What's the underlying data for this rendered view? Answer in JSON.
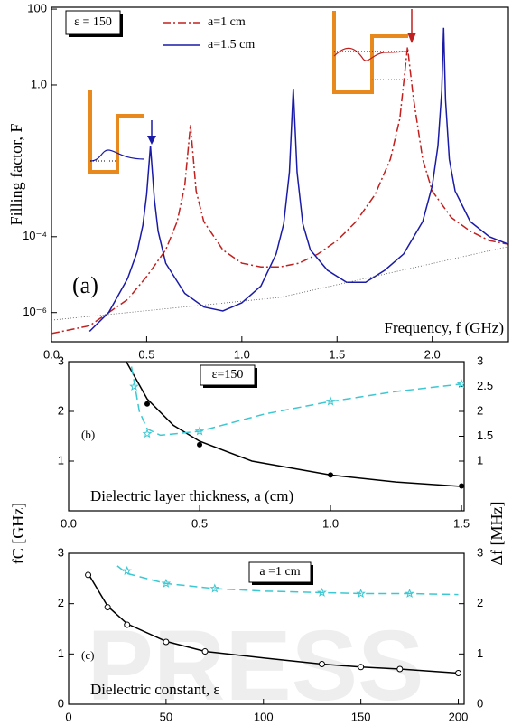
{
  "watermark": "PRESS",
  "chart_data": [
    {
      "type": "line",
      "ylog": true,
      "xlabel": "Frequency, f (GHz)",
      "ylabel": "Filling factor, F",
      "panel_label": "(a)",
      "annotation": "ε = 150",
      "xlim": [
        0,
        2.4
      ],
      "ylim": [
        1.7e-07,
        112
      ],
      "xticks": [
        {
          "value": 0,
          "label": "0.0"
        },
        {
          "value": 0.5,
          "label": "0.5"
        },
        {
          "value": 1,
          "label": "1.0"
        },
        {
          "value": 1.5,
          "label": "1.5"
        },
        {
          "value": 2,
          "label": "2.0"
        }
      ],
      "yticks": [
        {
          "value": 1e-06,
          "label": "10⁻⁶"
        },
        {
          "value": 0.0001,
          "label": "10⁻⁴"
        },
        {
          "value": 1,
          "label": "1.0"
        },
        100
      ],
      "series": [
        {
          "name": "a=1 cm",
          "color": "#c0201e",
          "style": "dashdot",
          "x": [
            0,
            0.2,
            0.3,
            0.4,
            0.5,
            0.6,
            0.66,
            0.7,
            0.73,
            0.76,
            0.8,
            0.9,
            1.0,
            1.1,
            1.2,
            1.3,
            1.4,
            1.5,
            1.6,
            1.7,
            1.78,
            1.83,
            1.87,
            1.9,
            1.95,
            2.0,
            2.1,
            2.2,
            2.3,
            2.4
          ],
          "values": [
            2.8e-07,
            4.5e-07,
            1e-06,
            2.2e-06,
            8.9e-06,
            4.5e-05,
            0.00025,
            0.0022,
            0.09,
            0.0016,
            0.00025,
            4.5e-05,
            2e-05,
            1.6e-05,
            1.6e-05,
            2e-05,
            3.5e-05,
            7.9e-05,
            0.00025,
            0.0013,
            0.011,
            0.13,
            10,
            0.5,
            0.011,
            0.0016,
            0.00032,
            0.00014,
            7.9e-05,
            6.3e-05
          ]
        },
        {
          "name": "a=1.5 cm",
          "color": "#1a1aa8",
          "style": "solid",
          "x": [
            0.2,
            0.3,
            0.4,
            0.45,
            0.48,
            0.5,
            0.52,
            0.54,
            0.56,
            0.6,
            0.7,
            0.8,
            0.9,
            1.0,
            1.1,
            1.18,
            1.22,
            1.25,
            1.27,
            1.29,
            1.32,
            1.36,
            1.45,
            1.55,
            1.65,
            1.75,
            1.85,
            1.95,
            2.0,
            2.03,
            2.05,
            2.06,
            2.07,
            2.09,
            2.12,
            2.2,
            2.3,
            2.4
          ],
          "values": [
            3.2e-07,
            1e-06,
            7.9e-06,
            4e-05,
            0.0002,
            0.0013,
            0.025,
            0.001,
            0.00014,
            2e-05,
            3.2e-06,
            1.4e-06,
            1.1e-06,
            1.8e-06,
            5e-06,
            3.5e-05,
            0.00022,
            0.005,
            0.8,
            0.005,
            0.00022,
            4.5e-05,
            1.3e-05,
            6.3e-06,
            6.3e-06,
            1.3e-05,
            3.5e-05,
            0.00025,
            0.0022,
            0.025,
            0.7,
            32,
            0.4,
            0.011,
            0.0016,
            0.00025,
            0.0001,
            6.3e-05
          ]
        },
        {
          "color": "#555555",
          "style": "dotted",
          "x": [
            0,
            1.2,
            2.4
          ],
          "values": [
            6.3e-07,
            2.5e-06,
            5.5e-05
          ]
        }
      ]
    },
    {
      "type": "line",
      "xlabel": "Dielectric layer thickness, a (cm)",
      "ylabel": "fC [GHz]",
      "y2label": "Δf [MHz]",
      "panel_label": "(b)",
      "annotation": "ε=150",
      "xlim": [
        0,
        1.51
      ],
      "ylim": [
        0,
        3
      ],
      "y2lim": [
        0,
        3
      ],
      "xticks": [
        {
          "value": 0,
          "label": "0.0"
        },
        {
          "value": 0.5,
          "label": "0.5"
        },
        {
          "value": 1,
          "label": "1.0"
        },
        {
          "value": 1.5,
          "label": "1.5"
        }
      ],
      "yticks": [
        1,
        2,
        3
      ],
      "y2ticks": [
        1,
        1.5,
        2,
        2.5,
        3
      ],
      "series": [
        {
          "color": "#000000",
          "style": "solid",
          "x": [
            0.22,
            0.3,
            0.4,
            0.5,
            0.7,
            1.0,
            1.25,
            1.5
          ],
          "values": [
            3.0,
            2.25,
            1.72,
            1.4,
            1.0,
            0.72,
            0.58,
            0.49
          ]
        },
        {
          "color": "#000000",
          "style": "none",
          "marker": "dot",
          "x": [
            0.3,
            0.5,
            1.0,
            1.5
          ],
          "values": [
            2.15,
            1.33,
            0.72,
            0.5
          ]
        },
        {
          "color": "#3cc8d2",
          "style": "dashed",
          "axis": "y2",
          "x": [
            0.24,
            0.27,
            0.3,
            0.35,
            0.5,
            0.75,
            1.0,
            1.25,
            1.5
          ],
          "values": [
            2.9,
            2.0,
            1.65,
            1.52,
            1.6,
            1.95,
            2.2,
            2.4,
            2.55
          ]
        },
        {
          "color": "#3cc8d2",
          "style": "none",
          "marker": "star",
          "axis": "y2",
          "x": [
            0.25,
            0.3,
            0.5,
            1.0,
            1.5
          ],
          "values": [
            2.5,
            1.55,
            1.6,
            2.2,
            2.55
          ]
        }
      ]
    },
    {
      "type": "line",
      "xlabel": "Dielectric constant, ε",
      "panel_label": "(c)",
      "annotation": "a =1 cm",
      "xlim": [
        0,
        203
      ],
      "ylim": [
        0,
        3
      ],
      "y2lim": [
        0,
        3
      ],
      "xticks": [
        0,
        50,
        100,
        150,
        200
      ],
      "yticks": [
        0,
        1,
        2,
        3
      ],
      "y2ticks": [
        0,
        1,
        2,
        3
      ],
      "series": [
        {
          "color": "#000000",
          "style": "solid",
          "x": [
            10,
            20,
            30,
            50,
            70,
            100,
            130,
            150,
            170,
            200
          ],
          "values": [
            2.6,
            1.95,
            1.6,
            1.25,
            1.05,
            0.92,
            0.8,
            0.74,
            0.7,
            0.62
          ]
        },
        {
          "color": "#000000",
          "style": "none",
          "marker": "circle",
          "x": [
            10,
            20,
            30,
            50,
            70,
            130,
            150,
            170,
            200
          ],
          "values": [
            2.57,
            1.93,
            1.58,
            1.24,
            1.05,
            0.8,
            0.74,
            0.7,
            0.62
          ]
        },
        {
          "color": "#3cc8d2",
          "style": "dashed",
          "axis": "y2",
          "x": [
            25,
            30,
            50,
            75,
            100,
            130,
            150,
            175,
            200
          ],
          "values": [
            2.75,
            2.6,
            2.4,
            2.3,
            2.25,
            2.22,
            2.2,
            2.2,
            2.18
          ]
        },
        {
          "color": "#3cc8d2",
          "style": "none",
          "marker": "star",
          "axis": "y2",
          "x": [
            30,
            50,
            75,
            130,
            150,
            175
          ],
          "values": [
            2.65,
            2.4,
            2.3,
            2.22,
            2.2,
            2.2
          ]
        }
      ]
    }
  ]
}
